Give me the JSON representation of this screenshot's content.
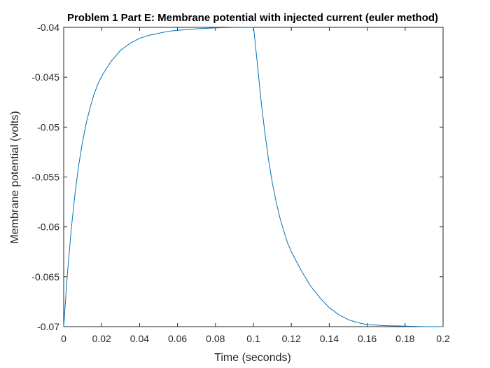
{
  "chart_data": {
    "type": "line",
    "title": "Problem 1 Part E: Membrane potential with injected current (euler method)",
    "xlabel": "Time (seconds)",
    "ylabel": "Membrane potential (volts)",
    "xlim": [
      0,
      0.2
    ],
    "ylim": [
      -0.07,
      -0.04
    ],
    "x_ticks": [
      0,
      0.02,
      0.04,
      0.06,
      0.08,
      0.1,
      0.12,
      0.14,
      0.16,
      0.18,
      0.2
    ],
    "x_tick_labels": [
      "0",
      "0.02",
      "0.04",
      "0.06",
      "0.08",
      "0.1",
      "0.12",
      "0.14",
      "0.16",
      "0.18",
      "0.2"
    ],
    "y_ticks": [
      -0.07,
      -0.065,
      -0.06,
      -0.055,
      -0.05,
      -0.045,
      -0.04
    ],
    "y_tick_labels": [
      "-0.07",
      "-0.065",
      "-0.06",
      "-0.055",
      "-0.05",
      "-0.045",
      "-0.04"
    ],
    "grid": false,
    "series": [
      {
        "color": "#0072bd",
        "x": [
          0,
          0.002,
          0.004,
          0.006,
          0.008,
          0.01,
          0.012,
          0.014,
          0.016,
          0.018,
          0.02,
          0.025,
          0.03,
          0.035,
          0.04,
          0.045,
          0.05,
          0.055,
          0.06,
          0.07,
          0.08,
          0.09,
          0.1,
          0.1001,
          0.102,
          0.104,
          0.106,
          0.108,
          0.11,
          0.112,
          0.114,
          0.116,
          0.118,
          0.12,
          0.125,
          0.13,
          0.135,
          0.14,
          0.145,
          0.15,
          0.155,
          0.16,
          0.17,
          0.18,
          0.19,
          0.2
        ],
        "y": [
          -0.07,
          -0.0646,
          -0.0602,
          -0.0566,
          -0.0537,
          -0.0514,
          -0.0495,
          -0.048,
          -0.0467,
          -0.0457,
          -0.0449,
          -0.0434,
          -0.0423,
          -0.0416,
          -0.0411,
          -0.0408,
          -0.0406,
          -0.0404,
          -0.0403,
          -0.04015,
          -0.04005,
          -0.04001,
          -0.04,
          -0.04,
          -0.0435,
          -0.0473,
          -0.0505,
          -0.0533,
          -0.0556,
          -0.0575,
          -0.0591,
          -0.0604,
          -0.0616,
          -0.0625,
          -0.0643,
          -0.0659,
          -0.0671,
          -0.0681,
          -0.0688,
          -0.0693,
          -0.0696,
          -0.0698,
          -0.0699,
          -0.06995,
          -0.07,
          -0.07
        ]
      }
    ]
  }
}
